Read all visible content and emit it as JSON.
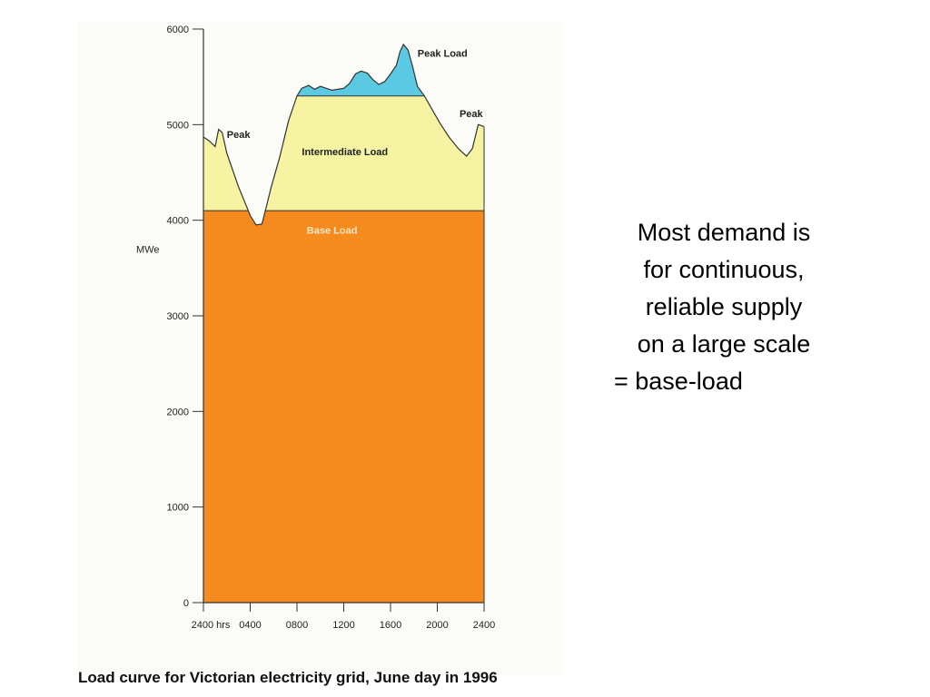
{
  "chart_data": {
    "type": "area",
    "title": "Load curve for Victorian electricity grid, June day in 1996",
    "ylabel": "MWe",
    "xlabel": "",
    "ylim": [
      0,
      6000
    ],
    "xlim": [
      0,
      24
    ],
    "y_ticks": [
      "0",
      "1000",
      "2000",
      "3000",
      "4000",
      "5000",
      "6000"
    ],
    "y_tick_values": [
      0,
      1000,
      2000,
      3000,
      4000,
      5000,
      6000
    ],
    "x_ticks": [
      "2400 hrs",
      "0400",
      "0800",
      "1200",
      "1600",
      "2000",
      "2400"
    ],
    "x_tick_values": [
      0,
      4,
      8,
      12,
      16,
      20,
      24
    ],
    "levels": {
      "base": 4100,
      "intermediate": 5300
    },
    "series": [
      {
        "name": "Load",
        "x": [
          0,
          0.5,
          1.0,
          1.3,
          1.6,
          2.0,
          3.0,
          4.0,
          4.5,
          5.0,
          5.4,
          5.8,
          6.5,
          7.3,
          8.0,
          8.4,
          9.0,
          9.5,
          10.0,
          11.0,
          12.0,
          12.5,
          13.0,
          13.5,
          14.0,
          14.5,
          15.0,
          15.5,
          16.0,
          16.5,
          16.8,
          17.1,
          17.5,
          17.9,
          18.3,
          18.9,
          19.5,
          20.2,
          21.0,
          21.8,
          22.5,
          23.0,
          23.5,
          24.0
        ],
        "values": [
          4870,
          4830,
          4770,
          4950,
          4920,
          4700,
          4350,
          4050,
          3950,
          3960,
          4150,
          4350,
          4650,
          5050,
          5300,
          5380,
          5410,
          5370,
          5400,
          5360,
          5380,
          5430,
          5530,
          5560,
          5540,
          5470,
          5420,
          5450,
          5530,
          5620,
          5760,
          5840,
          5780,
          5600,
          5400,
          5300,
          5170,
          5020,
          4870,
          4750,
          4670,
          4750,
          5000,
          4980
        ]
      }
    ],
    "region_labels": {
      "peak_load": "Peak Load",
      "peak_left": "Peak",
      "peak_right": "Peak",
      "intermediate": "Intermediate  Load",
      "base": "Base Load"
    },
    "colors": {
      "base": "#f58a1f",
      "intermediate": "#f6f3a3",
      "peak": "#5cc9e2",
      "base_label": "#fde7c8"
    }
  },
  "side_text": {
    "line1": "Most demand is",
    "line2": "for continuous,",
    "line3": "reliable supply",
    "line4": "on a large scale",
    "line5": "= base-load"
  }
}
